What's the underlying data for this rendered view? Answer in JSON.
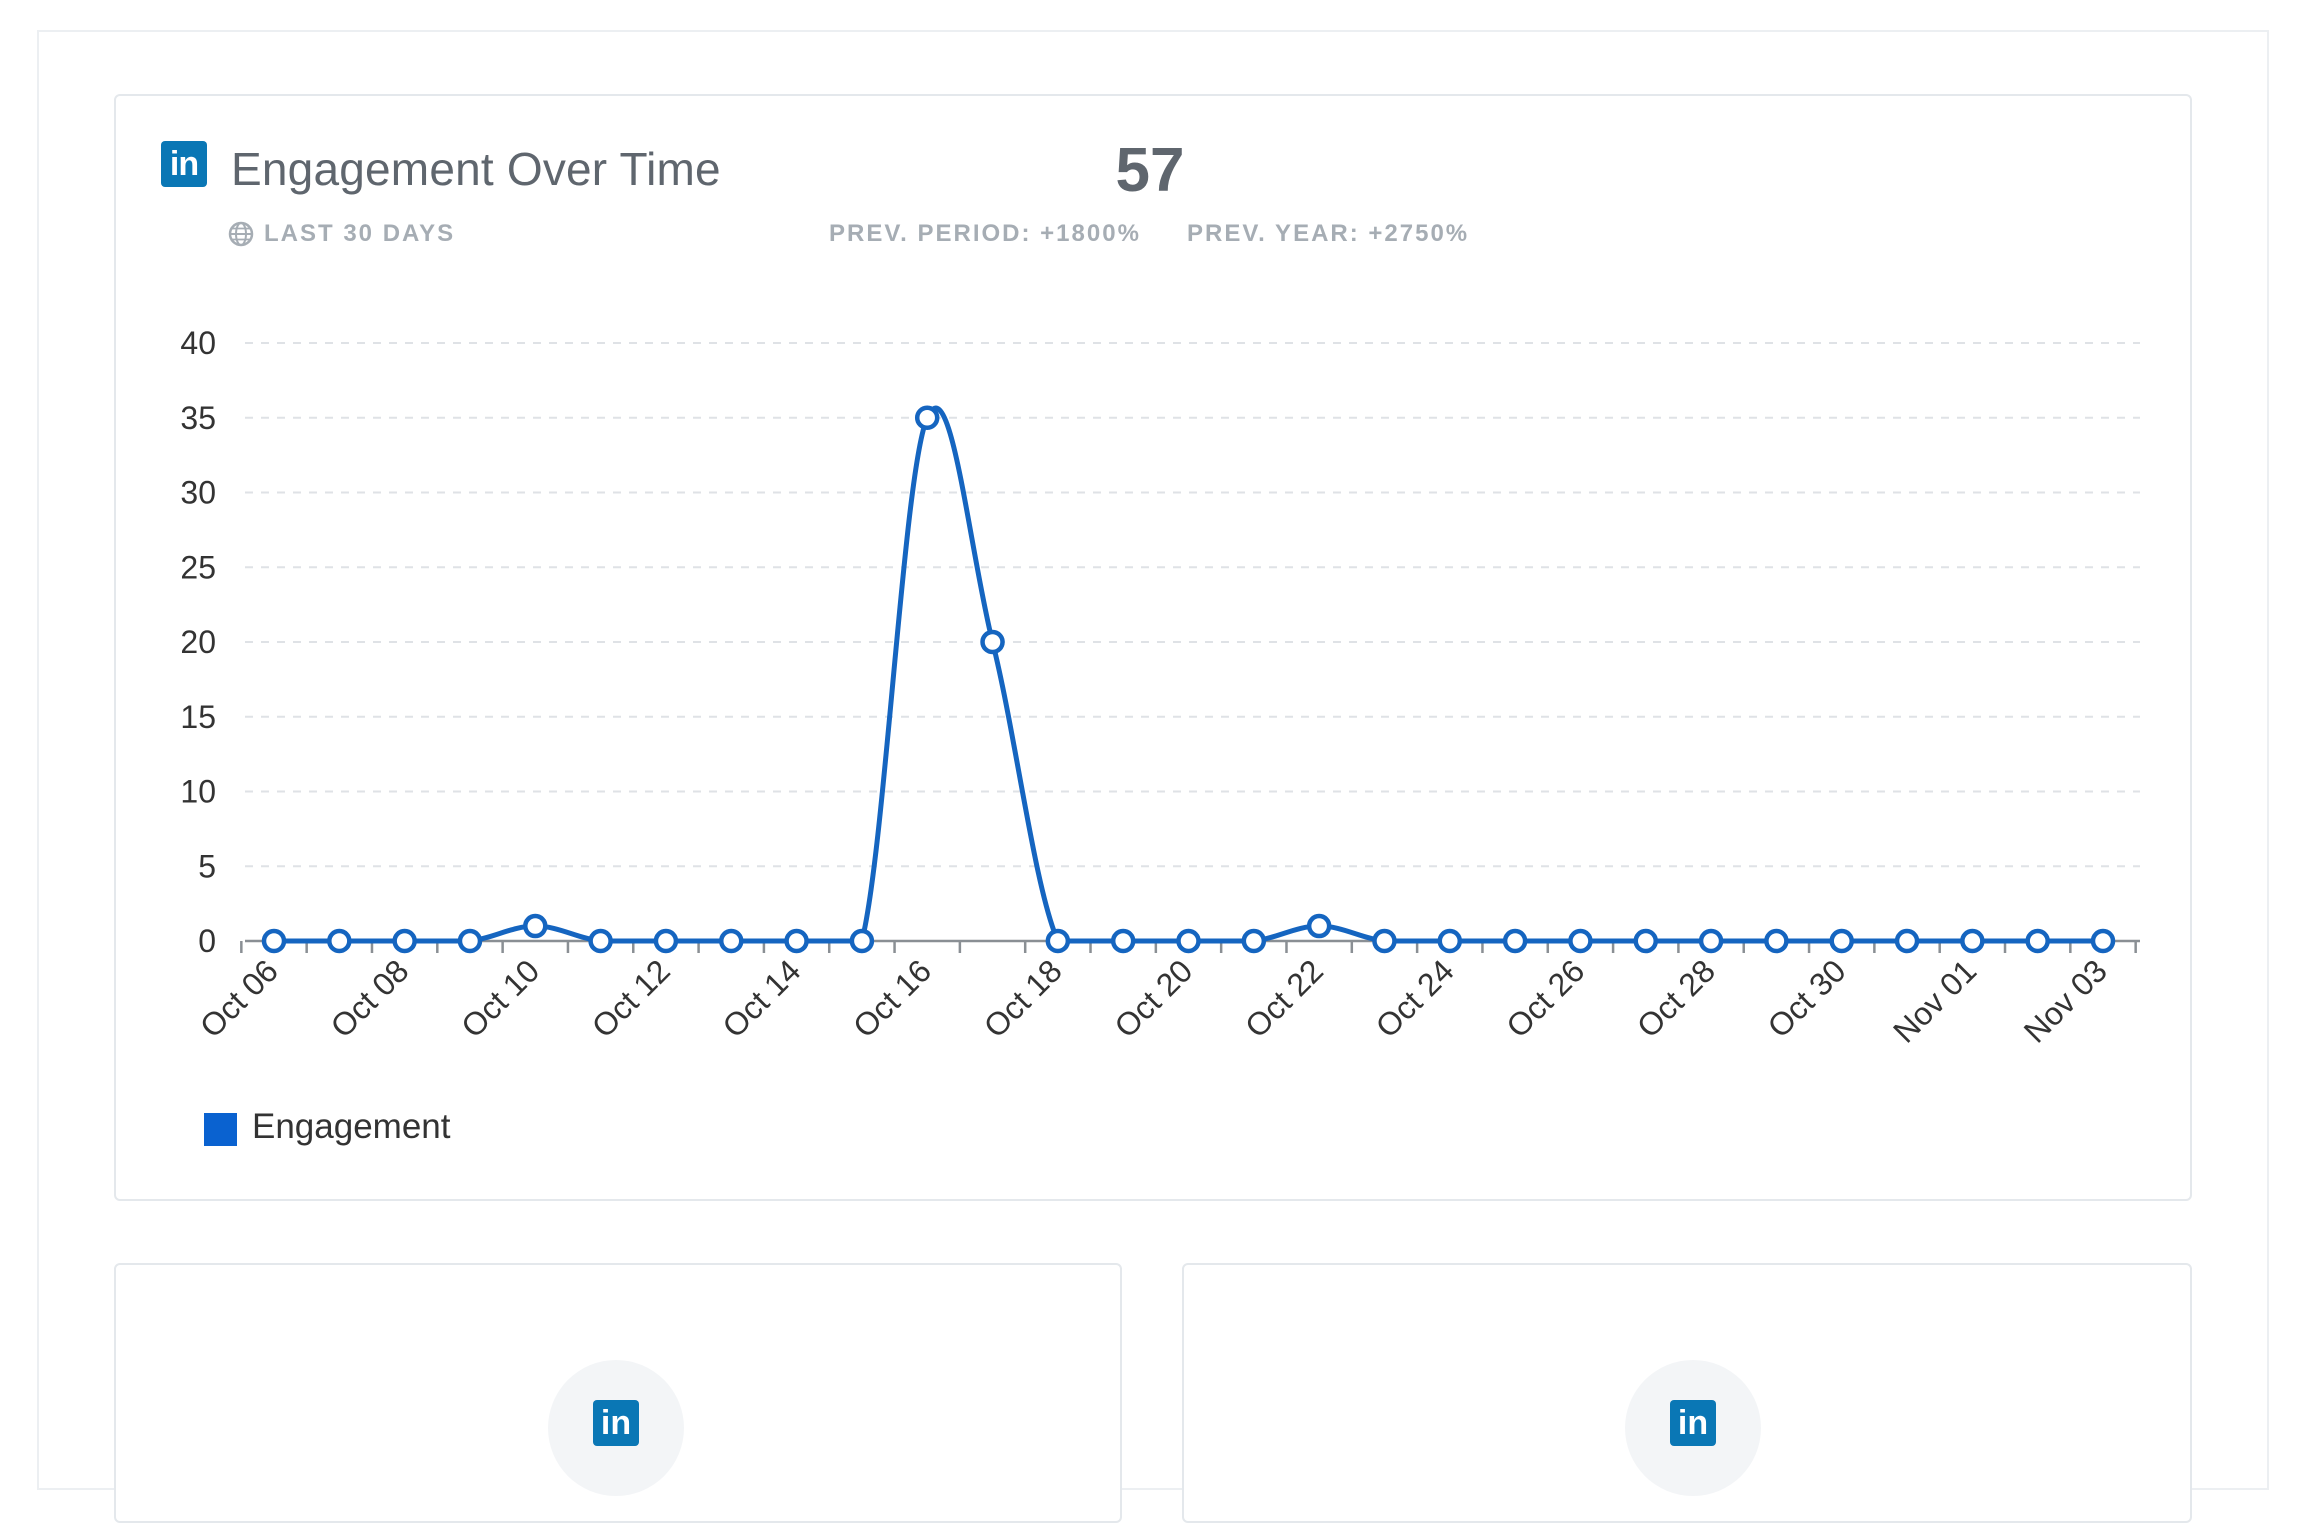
{
  "header": {
    "title": "Engagement Over Time",
    "total": "57",
    "range_label": "LAST 30 DAYS",
    "prev_period": "PREV. PERIOD: +1800%",
    "prev_year": "PREV. YEAR: +2750%",
    "icon": "linkedin-icon"
  },
  "legend": {
    "label": "Engagement",
    "color": "#0a62d0"
  },
  "sub_cards": [
    {
      "icon": "linkedin-icon"
    },
    {
      "icon": "linkedin-icon"
    }
  ],
  "chart_data": {
    "type": "line",
    "title": "Engagement Over Time",
    "ylim": [
      0,
      40
    ],
    "yticks": [
      0,
      5,
      10,
      15,
      20,
      25,
      30,
      35,
      40
    ],
    "x": [
      "Oct 06",
      "Oct 07",
      "Oct 08",
      "Oct 09",
      "Oct 10",
      "Oct 11",
      "Oct 12",
      "Oct 13",
      "Oct 14",
      "Oct 15",
      "Oct 16",
      "Oct 17",
      "Oct 18",
      "Oct 19",
      "Oct 20",
      "Oct 21",
      "Oct 22",
      "Oct 23",
      "Oct 24",
      "Oct 25",
      "Oct 26",
      "Oct 27",
      "Oct 28",
      "Oct 29",
      "Oct 30",
      "Oct 31",
      "Nov 01",
      "Nov 02",
      "Nov 03"
    ],
    "xtick_labels": [
      "Oct 06",
      "Oct 08",
      "Oct 10",
      "Oct 12",
      "Oct 14",
      "Oct 16",
      "Oct 18",
      "Oct 20",
      "Oct 22",
      "Oct 24",
      "Oct 26",
      "Oct 28",
      "Oct 30",
      "Nov 01",
      "Nov 03"
    ],
    "series": [
      {
        "name": "Engagement",
        "color": "#1565c0",
        "values": [
          0,
          0,
          0,
          0,
          1,
          0,
          0,
          0,
          0,
          0,
          35,
          20,
          0,
          0,
          0,
          0,
          1,
          0,
          0,
          0,
          0,
          0,
          0,
          0,
          0,
          0,
          0,
          0,
          0
        ]
      }
    ],
    "grid": true,
    "legend_position": "bottom-left"
  }
}
